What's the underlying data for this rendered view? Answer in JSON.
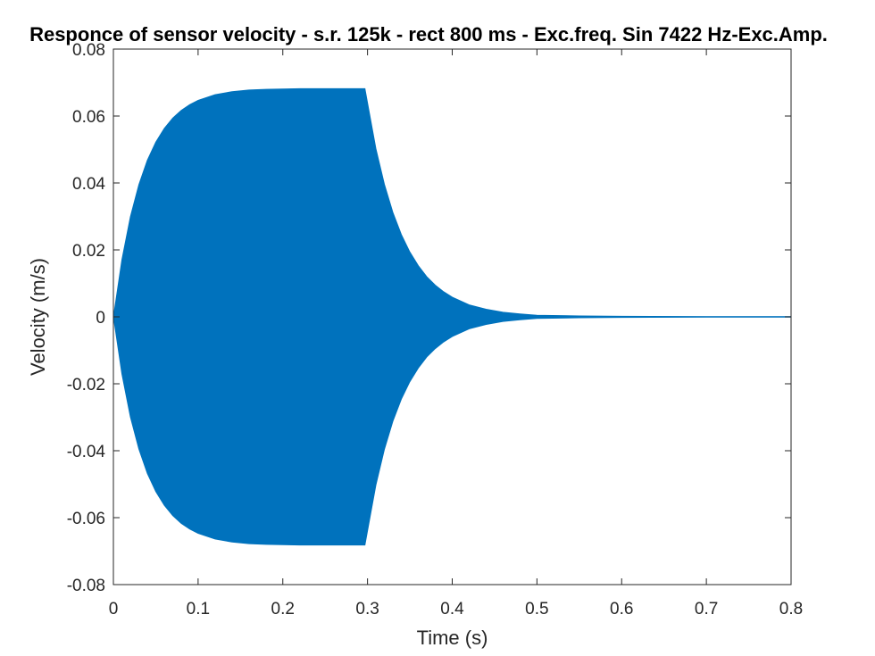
{
  "chart_data": {
    "type": "area",
    "title": "Responce of sensor velocity - s.r. 125k - rect 800 ms - Exc.freq. Sin 7422 Hz-Exc.Amp.",
    "xlabel": "Time (s)",
    "ylabel": "Velocity (m/s)",
    "xlim": [
      0,
      0.8
    ],
    "ylim": [
      -0.08,
      0.08
    ],
    "xticks": [
      "0",
      "0.1",
      "0.2",
      "0.3",
      "0.4",
      "0.5",
      "0.6",
      "0.7",
      "0.8"
    ],
    "yticks": [
      "0.08",
      "0.06",
      "0.04",
      "0.02",
      "0",
      "-0.02",
      "-0.04",
      "-0.06",
      "-0.08"
    ],
    "grid": false,
    "legend": "none",
    "series": [
      {
        "color": "#0072bd",
        "description": "oscillation envelope (amplitude, symmetric about 0)",
        "x": [
          0,
          0.01,
          0.02,
          0.03,
          0.04,
          0.05,
          0.06,
          0.07,
          0.08,
          0.09,
          0.1,
          0.12,
          0.14,
          0.16,
          0.18,
          0.2,
          0.22,
          0.24,
          0.26,
          0.28,
          0.296,
          0.297,
          0.31,
          0.32,
          0.33,
          0.34,
          0.35,
          0.36,
          0.37,
          0.38,
          0.39,
          0.4,
          0.42,
          0.44,
          0.46,
          0.48,
          0.5,
          0.55,
          0.6,
          0.7,
          0.8
        ],
        "amplitude": [
          0,
          0.0171,
          0.0299,
          0.0395,
          0.0468,
          0.0522,
          0.0563,
          0.0594,
          0.0617,
          0.0634,
          0.0647,
          0.0664,
          0.0673,
          0.0678,
          0.068,
          0.0681,
          0.0682,
          0.0682,
          0.0682,
          0.0682,
          0.0682,
          0.0682,
          0.0502,
          0.0396,
          0.0312,
          0.0246,
          0.0194,
          0.0153,
          0.012,
          0.0095,
          0.0075,
          0.0059,
          0.0036,
          0.0023,
          0.0014,
          0.0009,
          0.0005,
          0.0003,
          0.0002,
          0.0001,
          0.0001
        ]
      }
    ]
  }
}
